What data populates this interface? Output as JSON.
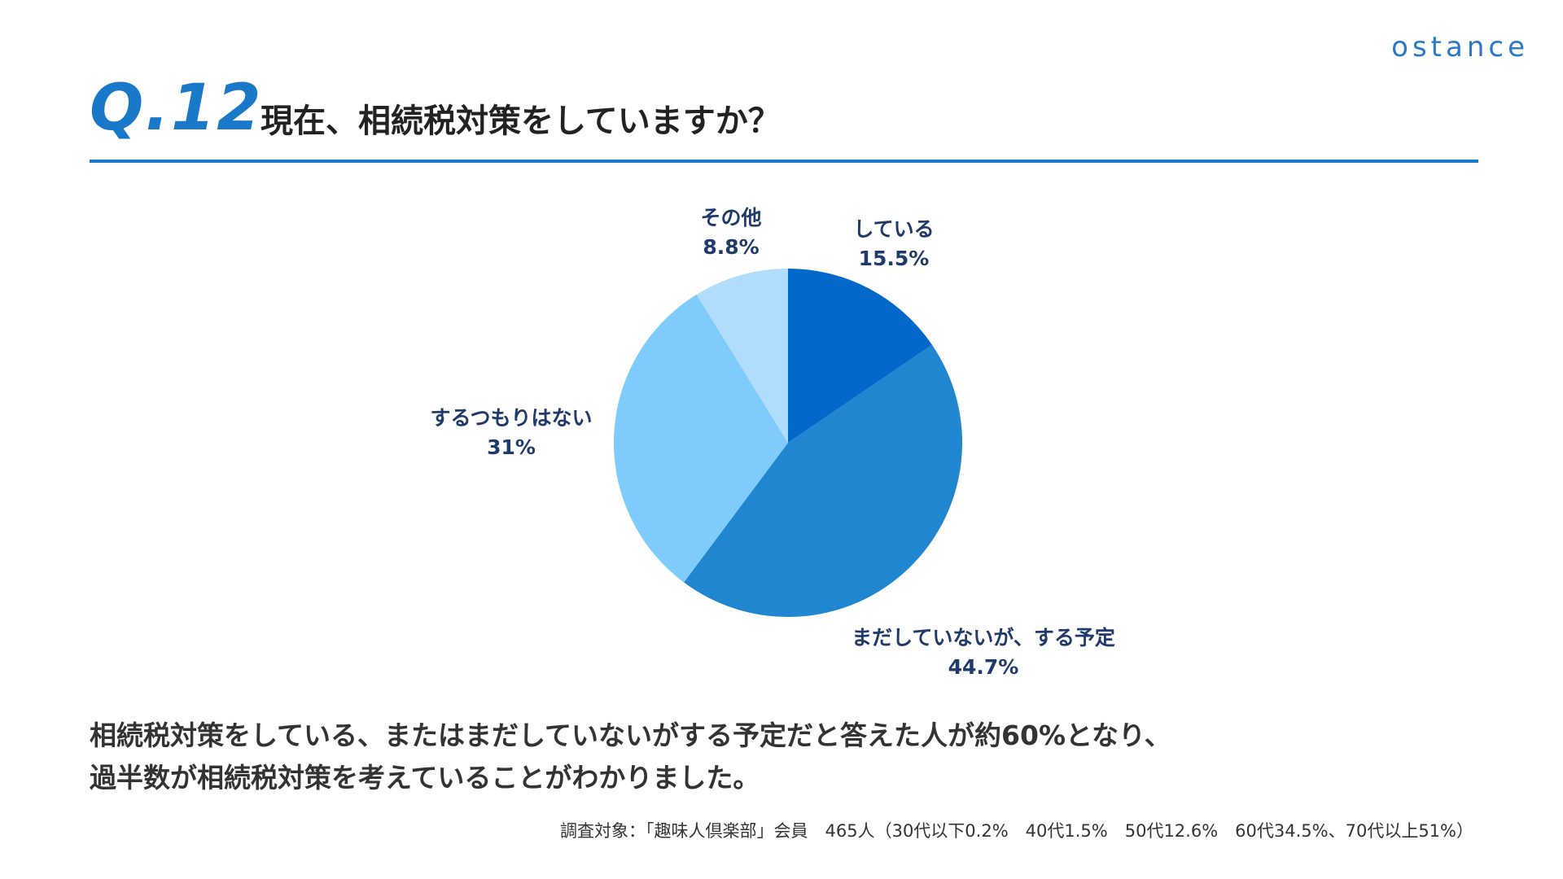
{
  "brand": "ostance",
  "header": {
    "question_number": "Q.12",
    "title": "現在、相続税対策をしていますか？"
  },
  "colors": {
    "accent": "#1a78c8",
    "label_text": "#1f3a6b"
  },
  "chart_data": {
    "type": "pie",
    "start_angle_deg": 0,
    "direction": "clockwise",
    "slices": [
      {
        "label": "している",
        "value": 15.5,
        "value_label": "15.5%",
        "color": "#0268c9"
      },
      {
        "label": "まだしていないが、する予定",
        "value": 44.7,
        "value_label": "44.7%",
        "color": "#1f86cf"
      },
      {
        "label": "するつもりはない",
        "value": 31,
        "value_label": "31%",
        "color": "#7ecbfc"
      },
      {
        "label": "その他",
        "value": 8.8,
        "value_label": "8.8%",
        "color": "#b0dcfd"
      }
    ]
  },
  "summary": {
    "line1": "相続税対策をしている、またはまだしていないがする予定だと答えた人が約60%となり、",
    "line2": "過半数が相続税対策を考えていることがわかりました。"
  },
  "footnote": "調査対象：「趣味人倶楽部」会員　465人（30代以下0.2%　40代1.5%　50代12.6%　60代34.5%、70代以上51%）"
}
